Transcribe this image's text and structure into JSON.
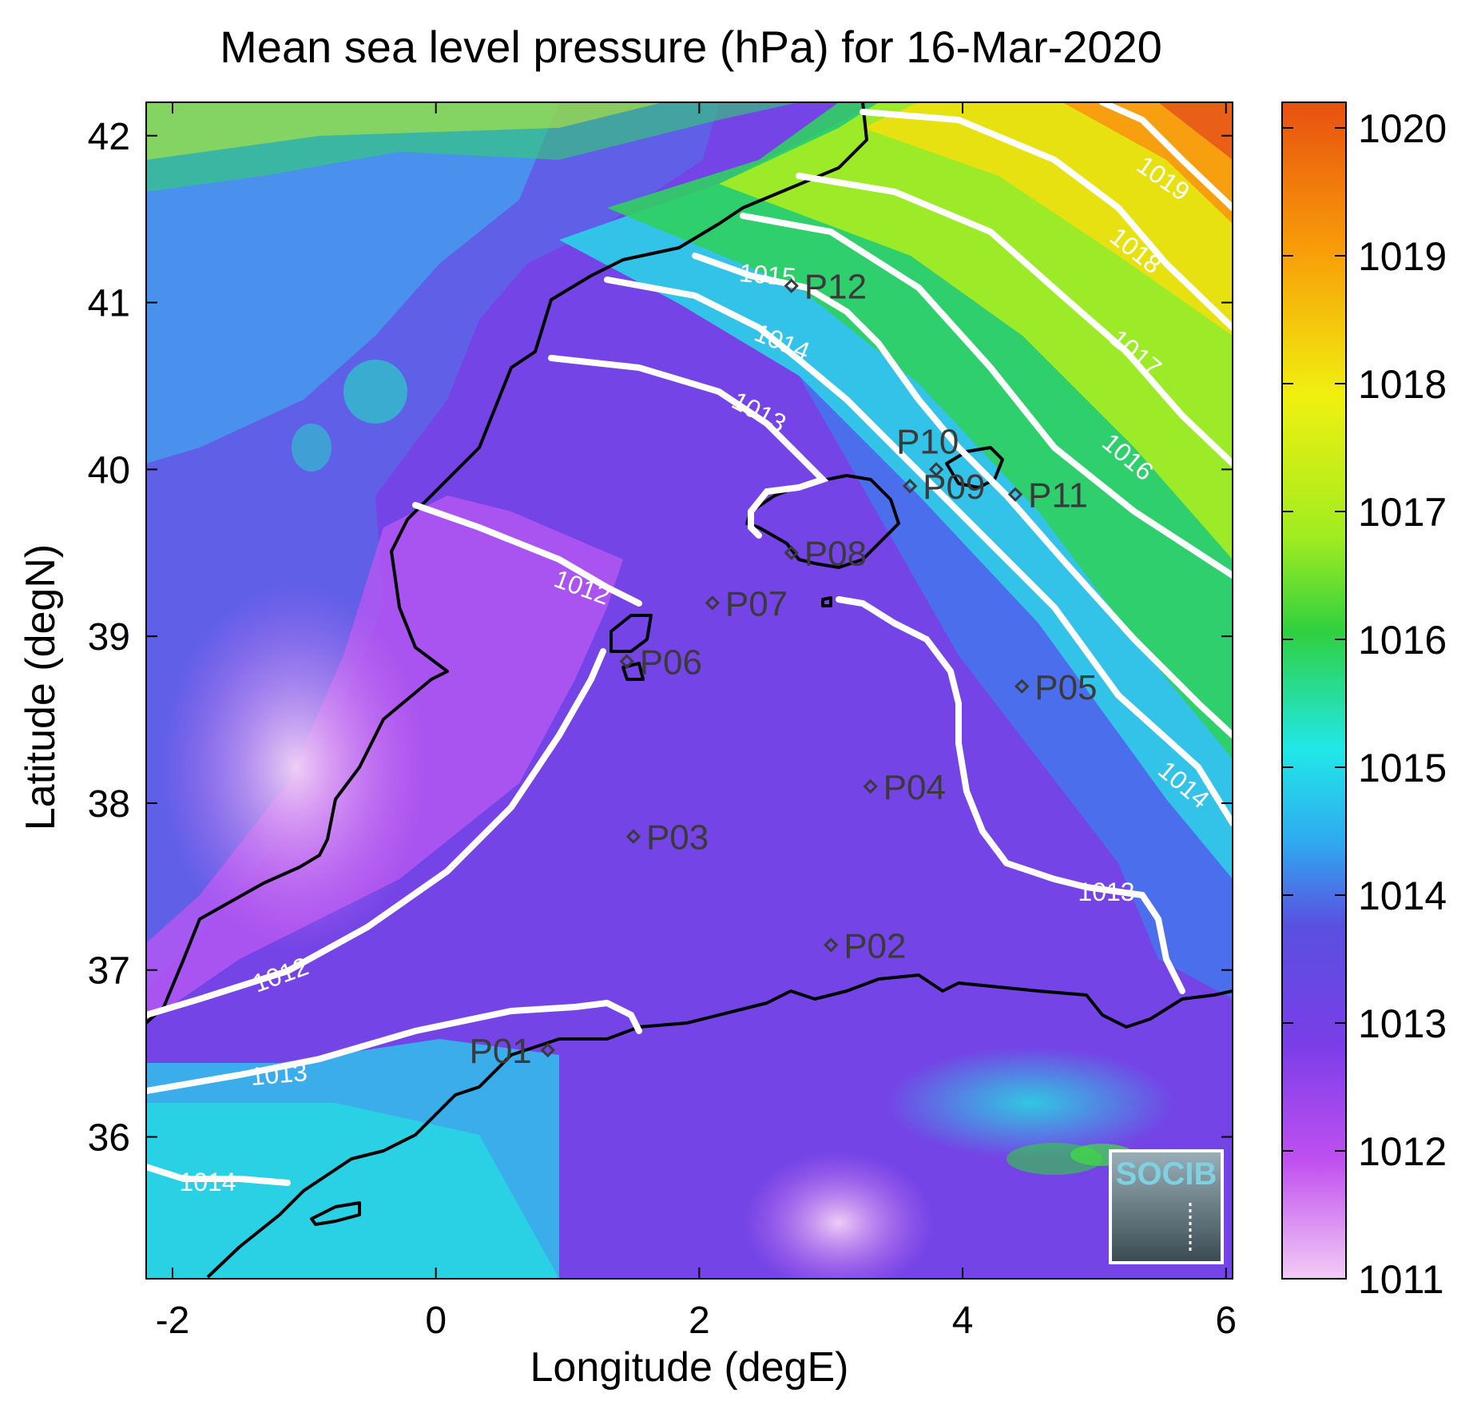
{
  "title": "Mean sea level pressure (hPa) for 16-Mar-2020",
  "xlabel": "Longitude (degE)",
  "ylabel": "Latitude (degN)",
  "x_ticks": [
    "-2",
    "0",
    "2",
    "4",
    "6"
  ],
  "y_ticks": [
    "42",
    "41",
    "40",
    "39",
    "38",
    "37",
    "36"
  ],
  "colorbar": {
    "ticks": [
      "1020",
      "1019",
      "1018",
      "1017",
      "1016",
      "1015",
      "1014",
      "1013",
      "1012",
      "1011"
    ],
    "min": 1011,
    "max": 1020.2
  },
  "contour_labels": [
    "1019",
    "1018",
    "1017",
    "1016",
    "1015",
    "1014",
    "1013",
    "1012",
    "1012",
    "1013",
    "1013",
    "1014",
    "1014"
  ],
  "stations": [
    {
      "id": "P01",
      "lon": 0.85,
      "lat": 36.52
    },
    {
      "id": "P02",
      "lon": 3.0,
      "lat": 37.15
    },
    {
      "id": "P03",
      "lon": 1.5,
      "lat": 37.8
    },
    {
      "id": "P04",
      "lon": 3.3,
      "lat": 38.1
    },
    {
      "id": "P05",
      "lon": 4.45,
      "lat": 38.7
    },
    {
      "id": "P06",
      "lon": 1.45,
      "lat": 38.85
    },
    {
      "id": "P07",
      "lon": 2.1,
      "lat": 39.2
    },
    {
      "id": "P08",
      "lon": 2.7,
      "lat": 39.5
    },
    {
      "id": "P09",
      "lon": 3.6,
      "lat": 39.9
    },
    {
      "id": "P10",
      "lon": 3.8,
      "lat": 40.0
    },
    {
      "id": "P11",
      "lon": 4.4,
      "lat": 39.85
    },
    {
      "id": "P12",
      "lon": 2.7,
      "lat": 41.1
    }
  ],
  "logo": {
    "text": "SOCIB"
  },
  "colors": {
    "contour": "#ffffff",
    "coast": "#000000",
    "station": "#3a3a3a",
    "colormap": [
      "#f2ccf5",
      "#c050f0",
      "#7a3ee8",
      "#5a50e0",
      "#30a8f0",
      "#20e8e8",
      "#30d040",
      "#a0ec20",
      "#f0f010",
      "#f8a008",
      "#e85010"
    ]
  }
}
